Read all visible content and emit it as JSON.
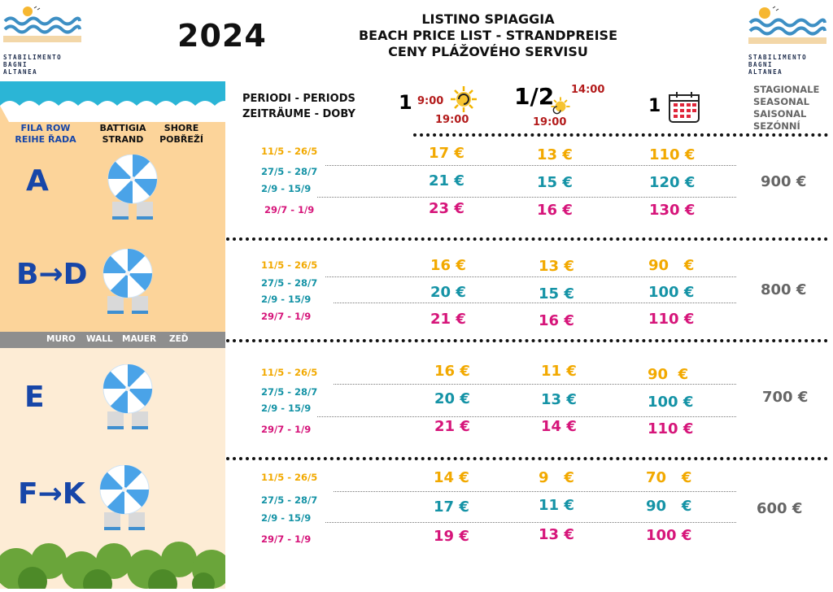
{
  "logo": {
    "line1": "STABILIMENTO",
    "line2": "BAGNI",
    "line3": "ALTANEA"
  },
  "year": "2024",
  "title": {
    "line1": "LISTINO SPIAGGIA",
    "line2": "BEACH PRICE LIST - STRANDPREISE",
    "line3": "CENY PLÁŽOVÉHO SERVISU"
  },
  "headers": {
    "periods_line1": "PERIODI - PERIODS",
    "periods_line2": "ZEITRÄUME - DOBY",
    "full_day_count": "1",
    "full_day_start": "9:00",
    "full_day_end": "19:00",
    "half_day_count": "1/2",
    "half_day_start": "14:00",
    "half_day_end": "19:00",
    "weekly_count": "1",
    "seasonal": [
      "STAGIONALE",
      "SEASONAL",
      "SAISONAL",
      "SEZÓNNÍ"
    ]
  },
  "left_columns": {
    "row": "FILA ROW",
    "row2": "REIHE ŘADA",
    "battigia": "BATTIGIA",
    "strand": "STRAND",
    "shore": "SHORE",
    "pobrezi": "POBŘEŽÍ"
  },
  "wall": {
    "muro": "MURO",
    "wall": "WALL",
    "mauer": "MAUER",
    "zed": "ZEĎ"
  },
  "rows": [
    {
      "letter": "A",
      "seasonal": "900 €",
      "periods": [
        "11/5 - 26/5",
        "27/5 - 28/7",
        "2/9 - 15/9",
        "29/7 - 1/9"
      ],
      "prices": [
        [
          "17 €",
          "13 €",
          "110 €"
        ],
        [
          "21 €",
          "15 €",
          "120 €"
        ],
        [
          "23 €",
          "16 €",
          "130 €"
        ]
      ]
    },
    {
      "letter": "B→D",
      "seasonal": "800 €",
      "periods": [
        "11/5 - 26/5",
        "27/5 - 28/7",
        "2/9 - 15/9",
        "29/7 - 1/9"
      ],
      "prices": [
        [
          "16 €",
          "13 €",
          "90   €"
        ],
        [
          "20 €",
          "15 €",
          "100 €"
        ],
        [
          "21 €",
          "16 €",
          "110 €"
        ]
      ]
    },
    {
      "letter": "E",
      "seasonal": "700 €",
      "periods": [
        "11/5 - 26/5",
        "27/5 - 28/7",
        "2/9 - 15/9",
        "29/7 - 1/9"
      ],
      "prices": [
        [
          "16 €",
          "11 €",
          "90  €"
        ],
        [
          "20 €",
          "13 €",
          "100 €"
        ],
        [
          "21 €",
          "14 €",
          "110 €"
        ]
      ]
    },
    {
      "letter": "F→K",
      "seasonal": "600 €",
      "periods": [
        "11/5 - 26/5",
        "27/5 - 28/7",
        "2/9 - 15/9",
        "29/7 - 1/9"
      ],
      "prices": [
        [
          "14 €",
          "9   €",
          "70   €"
        ],
        [
          "17 €",
          "11 €",
          "90   €"
        ],
        [
          "19 €",
          "13 €",
          "100 €"
        ]
      ]
    }
  ],
  "colors": {
    "yellow": "#f2a900",
    "teal": "#1593a6",
    "magenta": "#d6157a",
    "blue": "#1746a8",
    "sand": "#fcd49a",
    "sea": "#2bb5d6"
  }
}
